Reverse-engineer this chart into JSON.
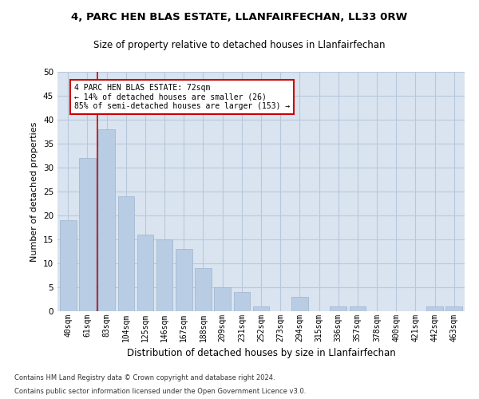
{
  "title1": "4, PARC HEN BLAS ESTATE, LLANFAIRFECHAN, LL33 0RW",
  "title2": "Size of property relative to detached houses in Llanfairfechan",
  "xlabel": "Distribution of detached houses by size in Llanfairfechan",
  "ylabel": "Number of detached properties",
  "footnote1": "Contains HM Land Registry data © Crown copyright and database right 2024.",
  "footnote2": "Contains public sector information licensed under the Open Government Licence v3.0.",
  "categories": [
    "40sqm",
    "61sqm",
    "83sqm",
    "104sqm",
    "125sqm",
    "146sqm",
    "167sqm",
    "188sqm",
    "209sqm",
    "231sqm",
    "252sqm",
    "273sqm",
    "294sqm",
    "315sqm",
    "336sqm",
    "357sqm",
    "378sqm",
    "400sqm",
    "421sqm",
    "442sqm",
    "463sqm"
  ],
  "values": [
    19,
    32,
    38,
    24,
    16,
    15,
    13,
    9,
    5,
    4,
    1,
    0,
    3,
    0,
    1,
    1,
    0,
    0,
    0,
    1,
    1
  ],
  "bar_color": "#b8cce4",
  "bar_edge_color": "#9db3cc",
  "grid_color": "#b8c8dc",
  "bg_color": "#d9e4f0",
  "vline_x": 1.5,
  "vline_color": "#cc0000",
  "annotation_text": "4 PARC HEN BLAS ESTATE: 72sqm\n← 14% of detached houses are smaller (26)\n85% of semi-detached houses are larger (153) →",
  "annotation_box_color": "#ffffff",
  "annotation_box_edge": "#cc0000",
  "ylim": [
    0,
    50
  ],
  "yticks": [
    0,
    5,
    10,
    15,
    20,
    25,
    30,
    35,
    40,
    45,
    50
  ]
}
